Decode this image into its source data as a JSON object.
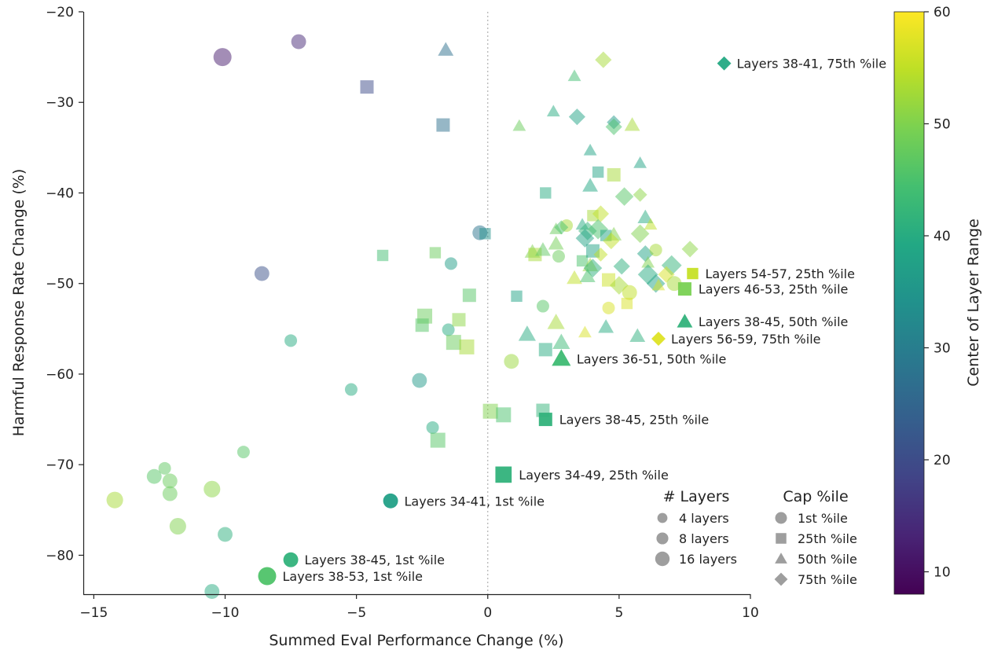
{
  "chart_data": {
    "type": "scatter",
    "xlabel": "Summed Eval Performance Change (%)",
    "ylabel": "Harmful Response Rate Change (%)",
    "xlim": [
      -15.4,
      10.0
    ],
    "ylim": [
      -84.3,
      -20.0
    ],
    "xticks": [
      -15,
      -10,
      -5,
      0,
      5,
      10
    ],
    "yticks": [
      -20,
      -30,
      -40,
      -50,
      -60,
      -70,
      -80
    ],
    "xtick_labels": [
      "−15",
      "−10",
      "−5",
      "0",
      "5",
      "10"
    ],
    "ytick_labels": [
      "−20",
      "−30",
      "−40",
      "−50",
      "−60",
      "−70",
      "−80"
    ],
    "reference_line_x": 0,
    "colorbar": {
      "label": "Center of Layer Range",
      "range": [
        8,
        60
      ],
      "ticks": [
        10,
        20,
        30,
        40,
        50,
        60
      ],
      "tick_labels": [
        "10",
        "20",
        "30",
        "40",
        "50",
        "60"
      ],
      "colormap": [
        "#440154",
        "#482475",
        "#414487",
        "#355f8d",
        "#2a788e",
        "#21918c",
        "#22a884",
        "#44bf70",
        "#7ad151",
        "#bddf26",
        "#fde725"
      ]
    },
    "legend_layers": {
      "title": "# Layers",
      "entries": [
        {
          "label": "4 layers",
          "layers": 4
        },
        {
          "label": "8 layers",
          "layers": 8
        },
        {
          "label": "16 layers",
          "layers": 16
        }
      ]
    },
    "legend_cap": {
      "title": "Cap %ile",
      "entries": [
        {
          "label": "1st %ile",
          "marker": "circle"
        },
        {
          "label": "25th %ile",
          "marker": "square"
        },
        {
          "label": "50th %ile",
          "marker": "triangle"
        },
        {
          "label": "75th %ile",
          "marker": "diamond"
        }
      ]
    },
    "highlighted": [
      {
        "label": "Layers 38-41, 75th %ile",
        "x": 9.0,
        "y": -25.7,
        "marker": "diamond",
        "layers": 4,
        "center": 39.5
      },
      {
        "label": "Layers 54-57, 25th %ile",
        "x": 7.8,
        "y": -48.9,
        "marker": "square",
        "layers": 4,
        "center": 55.5
      },
      {
        "label": "Layers 46-53, 25th %ile",
        "x": 7.5,
        "y": -50.6,
        "marker": "square",
        "layers": 8,
        "center": 49.5
      },
      {
        "label": "Layers 38-45, 50th %ile",
        "x": 7.5,
        "y": -54.2,
        "marker": "triangle",
        "layers": 8,
        "center": 41.5
      },
      {
        "label": "Layers 56-59, 75th %ile",
        "x": 6.5,
        "y": -56.1,
        "marker": "diamond",
        "layers": 4,
        "center": 57.5
      },
      {
        "label": "Layers 36-51, 50th %ile",
        "x": 2.8,
        "y": -58.3,
        "marker": "triangle",
        "layers": 16,
        "center": 43.5
      },
      {
        "label": "Layers 38-45, 25th %ile",
        "x": 2.2,
        "y": -65.0,
        "marker": "square",
        "layers": 8,
        "center": 41.5
      },
      {
        "label": "Layers 34-49, 25th %ile",
        "x": 0.6,
        "y": -71.1,
        "marker": "square",
        "layers": 16,
        "center": 41.5
      },
      {
        "label": "Layers 34-41, 1st %ile",
        "x": -3.7,
        "y": -74.0,
        "marker": "circle",
        "layers": 8,
        "center": 37.5
      },
      {
        "label": "Layers 38-45, 1st %ile",
        "x": -7.5,
        "y": -80.5,
        "marker": "circle",
        "layers": 8,
        "center": 41.5
      },
      {
        "label": "Layers 38-53, 1st %ile",
        "x": -8.4,
        "y": -82.3,
        "marker": "circle",
        "layers": 16,
        "center": 45.5
      }
    ],
    "points": [
      {
        "x": -10.1,
        "y": -25.0,
        "marker": "circle",
        "layers": 16,
        "center": 12
      },
      {
        "x": -7.2,
        "y": -23.3,
        "marker": "circle",
        "layers": 8,
        "center": 14
      },
      {
        "x": -1.6,
        "y": -24.2,
        "marker": "triangle",
        "layers": 8,
        "center": 27
      },
      {
        "x": -4.6,
        "y": -28.3,
        "marker": "square",
        "layers": 8,
        "center": 20
      },
      {
        "x": -1.7,
        "y": -32.5,
        "marker": "square",
        "layers": 8,
        "center": 27
      },
      {
        "x": 4.4,
        "y": -25.3,
        "marker": "diamond",
        "layers": 8,
        "center": 53
      },
      {
        "x": 3.3,
        "y": -27.1,
        "marker": "triangle",
        "layers": 4,
        "center": 44
      },
      {
        "x": 2.5,
        "y": -31.0,
        "marker": "triangle",
        "layers": 4,
        "center": 40
      },
      {
        "x": 3.4,
        "y": -31.6,
        "marker": "diamond",
        "layers": 8,
        "center": 38
      },
      {
        "x": 1.2,
        "y": -32.6,
        "marker": "triangle",
        "layers": 4,
        "center": 48
      },
      {
        "x": 4.8,
        "y": -32.2,
        "marker": "diamond",
        "layers": 4,
        "center": 36
      },
      {
        "x": 4.8,
        "y": -32.7,
        "marker": "diamond",
        "layers": 8,
        "center": 45
      },
      {
        "x": 5.5,
        "y": -32.5,
        "marker": "triangle",
        "layers": 8,
        "center": 53
      },
      {
        "x": 3.9,
        "y": -35.3,
        "marker": "triangle",
        "layers": 4,
        "center": 38
      },
      {
        "x": 5.8,
        "y": -36.7,
        "marker": "triangle",
        "layers": 4,
        "center": 38
      },
      {
        "x": 4.2,
        "y": -37.7,
        "marker": "square",
        "layers": 4,
        "center": 38
      },
      {
        "x": 4.8,
        "y": -38.0,
        "marker": "square",
        "layers": 8,
        "center": 53
      },
      {
        "x": 2.2,
        "y": -40.0,
        "marker": "square",
        "layers": 4,
        "center": 40
      },
      {
        "x": 3.9,
        "y": -39.2,
        "marker": "triangle",
        "layers": 8,
        "center": 39
      },
      {
        "x": 5.2,
        "y": -40.4,
        "marker": "diamond",
        "layers": 12,
        "center": 46
      },
      {
        "x": 5.8,
        "y": -40.2,
        "marker": "diamond",
        "layers": 4,
        "center": 51
      },
      {
        "x": 6.0,
        "y": -42.7,
        "marker": "triangle",
        "layers": 8,
        "center": 40
      },
      {
        "x": 4.0,
        "y": -42.5,
        "marker": "square",
        "layers": 4,
        "center": 53
      },
      {
        "x": 4.3,
        "y": -42.3,
        "marker": "diamond",
        "layers": 8,
        "center": 55
      },
      {
        "x": 3.0,
        "y": -43.6,
        "marker": "circle",
        "layers": 4,
        "center": 53
      },
      {
        "x": 2.6,
        "y": -44.0,
        "marker": "triangle",
        "layers": 4,
        "center": 48
      },
      {
        "x": 2.8,
        "y": -43.8,
        "marker": "diamond",
        "layers": 4,
        "center": 45
      },
      {
        "x": 3.6,
        "y": -43.5,
        "marker": "triangle",
        "layers": 4,
        "center": 40
      },
      {
        "x": 6.2,
        "y": -43.5,
        "marker": "triangle",
        "layers": 4,
        "center": 55
      },
      {
        "x": -0.3,
        "y": -44.4,
        "marker": "circle",
        "layers": 8,
        "center": 28
      },
      {
        "x": -0.1,
        "y": -44.5,
        "marker": "square",
        "layers": 4,
        "center": 34
      },
      {
        "x": 3.8,
        "y": -44.2,
        "marker": "diamond",
        "layers": 12,
        "center": 42
      },
      {
        "x": 4.2,
        "y": -44.0,
        "marker": "diamond",
        "layers": 16,
        "center": 45
      },
      {
        "x": 4.5,
        "y": -44.7,
        "marker": "square",
        "layers": 4,
        "center": 38
      },
      {
        "x": 4.8,
        "y": -44.6,
        "marker": "triangle",
        "layers": 8,
        "center": 50
      },
      {
        "x": 4.7,
        "y": -45.3,
        "marker": "diamond",
        "layers": 8,
        "center": 55
      },
      {
        "x": 5.8,
        "y": -44.5,
        "marker": "diamond",
        "layers": 12,
        "center": 50
      },
      {
        "x": 3.7,
        "y": -45.0,
        "marker": "diamond",
        "layers": 12,
        "center": 38
      },
      {
        "x": 2.6,
        "y": -45.6,
        "marker": "triangle",
        "layers": 8,
        "center": 49
      },
      {
        "x": -8.6,
        "y": -48.9,
        "marker": "circle",
        "layers": 8,
        "center": 21
      },
      {
        "x": -4.0,
        "y": -46.9,
        "marker": "square",
        "layers": 4,
        "center": 44
      },
      {
        "x": -2.0,
        "y": -46.6,
        "marker": "square",
        "layers": 4,
        "center": 48
      },
      {
        "x": -1.4,
        "y": -47.8,
        "marker": "circle",
        "layers": 4,
        "center": 37
      },
      {
        "x": 1.7,
        "y": -46.5,
        "marker": "triangle",
        "layers": 8,
        "center": 50
      },
      {
        "x": 1.8,
        "y": -46.8,
        "marker": "square",
        "layers": 8,
        "center": 53
      },
      {
        "x": 2.1,
        "y": -46.3,
        "marker": "triangle",
        "layers": 8,
        "center": 47
      },
      {
        "x": 2.7,
        "y": -47.0,
        "marker": "circle",
        "layers": 4,
        "center": 48
      },
      {
        "x": 3.6,
        "y": -47.5,
        "marker": "square",
        "layers": 4,
        "center": 45
      },
      {
        "x": 4.0,
        "y": -46.4,
        "marker": "square",
        "layers": 8,
        "center": 38
      },
      {
        "x": 4.3,
        "y": -46.8,
        "marker": "diamond",
        "layers": 4,
        "center": 55
      },
      {
        "x": 3.9,
        "y": -48.0,
        "marker": "triangle",
        "layers": 8,
        "center": 52
      },
      {
        "x": 4.0,
        "y": -48.3,
        "marker": "diamond",
        "layers": 12,
        "center": 41
      },
      {
        "x": 5.1,
        "y": -48.1,
        "marker": "diamond",
        "layers": 8,
        "center": 41
      },
      {
        "x": 6.0,
        "y": -46.7,
        "marker": "diamond",
        "layers": 8,
        "center": 38
      },
      {
        "x": 6.1,
        "y": -47.7,
        "marker": "triangle",
        "layers": 4,
        "center": 50
      },
      {
        "x": 6.4,
        "y": -46.3,
        "marker": "circle",
        "layers": 4,
        "center": 53
      },
      {
        "x": 7.0,
        "y": -48.0,
        "marker": "diamond",
        "layers": 16,
        "center": 42
      },
      {
        "x": 7.7,
        "y": -46.2,
        "marker": "diamond",
        "layers": 8,
        "center": 51
      },
      {
        "x": 3.3,
        "y": -49.4,
        "marker": "triangle",
        "layers": 8,
        "center": 55
      },
      {
        "x": 3.8,
        "y": -49.2,
        "marker": "triangle",
        "layers": 8,
        "center": 45
      },
      {
        "x": 4.6,
        "y": -49.6,
        "marker": "square",
        "layers": 8,
        "center": 56
      },
      {
        "x": 5.0,
        "y": -50.2,
        "marker": "diamond",
        "layers": 12,
        "center": 53
      },
      {
        "x": 5.4,
        "y": -51.0,
        "marker": "circle",
        "layers": 8,
        "center": 55
      },
      {
        "x": 6.1,
        "y": -49.0,
        "marker": "diamond",
        "layers": 16,
        "center": 40
      },
      {
        "x": 6.4,
        "y": -50.0,
        "marker": "diamond",
        "layers": 12,
        "center": 38
      },
      {
        "x": 6.5,
        "y": -50.2,
        "marker": "triangle",
        "layers": 4,
        "center": 57
      },
      {
        "x": 6.8,
        "y": -49.0,
        "marker": "diamond",
        "layers": 8,
        "center": 57
      },
      {
        "x": 7.1,
        "y": -50.0,
        "marker": "circle",
        "layers": 8,
        "center": 53
      },
      {
        "x": -0.7,
        "y": -51.3,
        "marker": "square",
        "layers": 8,
        "center": 46
      },
      {
        "x": 1.1,
        "y": -51.4,
        "marker": "square",
        "layers": 4,
        "center": 38
      },
      {
        "x": 2.1,
        "y": -52.5,
        "marker": "circle",
        "layers": 4,
        "center": 46
      },
      {
        "x": 4.6,
        "y": -52.7,
        "marker": "circle",
        "layers": 4,
        "center": 57
      },
      {
        "x": 5.3,
        "y": -52.2,
        "marker": "square",
        "layers": 4,
        "center": 57
      },
      {
        "x": -2.4,
        "y": -53.6,
        "marker": "square",
        "layers": 12,
        "center": 48
      },
      {
        "x": -2.5,
        "y": -54.6,
        "marker": "square",
        "layers": 8,
        "center": 46
      },
      {
        "x": -1.5,
        "y": -55.1,
        "marker": "circle",
        "layers": 4,
        "center": 40
      },
      {
        "x": -1.1,
        "y": -54.0,
        "marker": "square",
        "layers": 8,
        "center": 51
      },
      {
        "x": 2.6,
        "y": -54.3,
        "marker": "triangle",
        "layers": 12,
        "center": 53
      },
      {
        "x": 3.7,
        "y": -55.4,
        "marker": "triangle",
        "layers": 4,
        "center": 57
      },
      {
        "x": 4.5,
        "y": -54.8,
        "marker": "triangle",
        "layers": 8,
        "center": 40
      },
      {
        "x": -7.5,
        "y": -56.3,
        "marker": "circle",
        "layers": 4,
        "center": 40
      },
      {
        "x": -1.3,
        "y": -56.5,
        "marker": "square",
        "layers": 12,
        "center": 48
      },
      {
        "x": -0.8,
        "y": -57.0,
        "marker": "square",
        "layers": 12,
        "center": 53
      },
      {
        "x": 1.5,
        "y": -55.6,
        "marker": "triangle",
        "layers": 12,
        "center": 40
      },
      {
        "x": 2.8,
        "y": -56.5,
        "marker": "triangle",
        "layers": 12,
        "center": 43
      },
      {
        "x": 5.7,
        "y": -55.8,
        "marker": "triangle",
        "layers": 8,
        "center": 41
      },
      {
        "x": 2.2,
        "y": -57.3,
        "marker": "square",
        "layers": 8,
        "center": 40
      },
      {
        "x": 0.9,
        "y": -58.6,
        "marker": "circle",
        "layers": 8,
        "center": 52
      },
      {
        "x": -5.2,
        "y": -61.7,
        "marker": "circle",
        "layers": 4,
        "center": 40
      },
      {
        "x": -2.6,
        "y": -60.7,
        "marker": "circle",
        "layers": 8,
        "center": 36
      },
      {
        "x": 0.1,
        "y": -64.1,
        "marker": "square",
        "layers": 12,
        "center": 50
      },
      {
        "x": 0.6,
        "y": -64.5,
        "marker": "square",
        "layers": 12,
        "center": 45
      },
      {
        "x": 2.1,
        "y": -64.0,
        "marker": "square",
        "layers": 8,
        "center": 42
      },
      {
        "x": -2.1,
        "y": -65.9,
        "marker": "circle",
        "layers": 4,
        "center": 40
      },
      {
        "x": -1.9,
        "y": -67.3,
        "marker": "square",
        "layers": 12,
        "center": 46
      },
      {
        "x": -9.3,
        "y": -68.6,
        "marker": "circle",
        "layers": 4,
        "center": 46
      },
      {
        "x": -12.3,
        "y": -70.4,
        "marker": "circle",
        "layers": 4,
        "center": 47
      },
      {
        "x": -12.7,
        "y": -71.3,
        "marker": "circle",
        "layers": 8,
        "center": 46
      },
      {
        "x": -12.1,
        "y": -71.8,
        "marker": "circle",
        "layers": 8,
        "center": 48
      },
      {
        "x": -12.1,
        "y": -73.2,
        "marker": "circle",
        "layers": 8,
        "center": 48
      },
      {
        "x": -14.2,
        "y": -73.9,
        "marker": "circle",
        "layers": 12,
        "center": 53
      },
      {
        "x": -10.5,
        "y": -72.7,
        "marker": "circle",
        "layers": 12,
        "center": 51
      },
      {
        "x": -11.8,
        "y": -76.8,
        "marker": "circle",
        "layers": 12,
        "center": 50
      },
      {
        "x": -10.0,
        "y": -77.7,
        "marker": "circle",
        "layers": 8,
        "center": 41
      },
      {
        "x": -10.5,
        "y": -84.0,
        "marker": "circle",
        "layers": 8,
        "center": 40
      }
    ]
  }
}
